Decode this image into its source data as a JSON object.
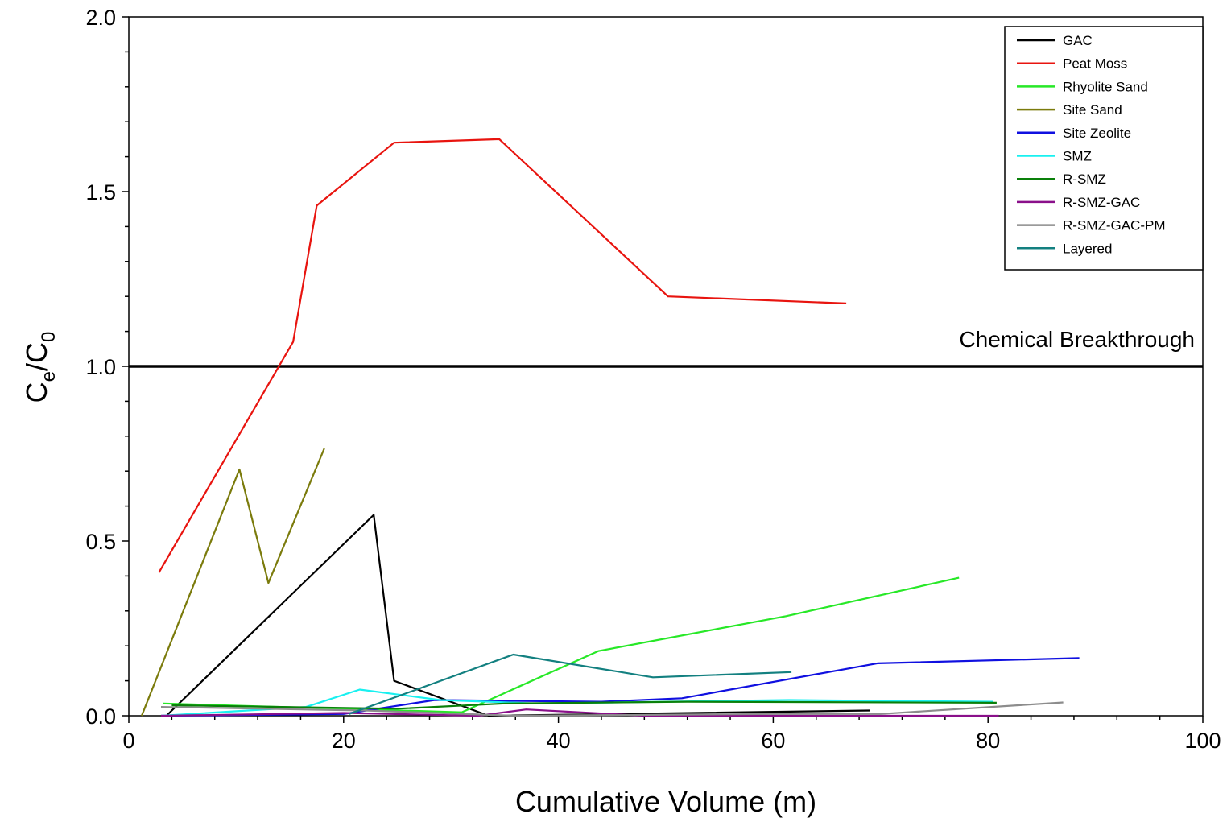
{
  "chart_data": {
    "type": "line",
    "title": "",
    "xlabel": "Cumulative Volume (m)",
    "ylabel_main": "C",
    "ylabel_sub1": "e",
    "ylabel_sep": "/C",
    "ylabel_sub2": "0",
    "xlim": [
      0,
      100
    ],
    "ylim": [
      0,
      2.0
    ],
    "x_ticks": [
      0,
      20,
      40,
      60,
      80,
      100
    ],
    "x_tick_labels": [
      "0",
      "20",
      "40",
      "60",
      "80",
      "100"
    ],
    "y_ticks": [
      0,
      0.5,
      1.0,
      1.5,
      2.0
    ],
    "y_tick_labels": [
      "0.0",
      "0.5",
      "1.0",
      "1.5",
      "2.0"
    ],
    "grid": false,
    "legend_position": "top-right",
    "reference_line": {
      "y": 1.0,
      "label": "Chemical Breakthrough",
      "color": "#000000"
    },
    "series": [
      {
        "name": "GAC",
        "color": "#000000",
        "x": [
          3.5,
          22.8,
          24.7,
          33.5,
          69
        ],
        "y": [
          0.0,
          0.575,
          0.1,
          0.0,
          0.015
        ]
      },
      {
        "name": "Peat Moss",
        "color": "#e8140f",
        "x": [
          2.8,
          15.3,
          17.5,
          24.7,
          34.5,
          50.2,
          66.8
        ],
        "y": [
          0.41,
          1.07,
          1.46,
          1.64,
          1.65,
          1.2,
          1.18
        ]
      },
      {
        "name": "Rhyolite Sand",
        "color": "#27e827",
        "x": [
          3.2,
          31.0,
          43.7,
          61.2,
          77.3
        ],
        "y": [
          0.035,
          0.01,
          0.185,
          0.285,
          0.395
        ]
      },
      {
        "name": "Site Sand",
        "color": "#7b7b0c",
        "x": [
          1.2,
          10.3,
          13.0,
          18.2
        ],
        "y": [
          0.0,
          0.705,
          0.38,
          0.765
        ]
      },
      {
        "name": "Site Zeolite",
        "color": "#1010e0",
        "x": [
          3.0,
          20.0,
          28.5,
          44.0,
          51.5,
          69.7,
          88.5
        ],
        "y": [
          0.0,
          0.005,
          0.045,
          0.04,
          0.05,
          0.15,
          0.165
        ]
      },
      {
        "name": "SMZ",
        "color": "#19f0f0",
        "x": [
          3.0,
          16.5,
          21.5,
          29.0,
          38.0,
          61.5,
          80.5
        ],
        "y": [
          0.0,
          0.025,
          0.075,
          0.045,
          0.035,
          0.045,
          0.04
        ]
      },
      {
        "name": "R-SMZ",
        "color": "#0a800a",
        "x": [
          4.0,
          25.0,
          35.0,
          52.0,
          80.8
        ],
        "y": [
          0.03,
          0.02,
          0.035,
          0.04,
          0.037
        ]
      },
      {
        "name": "R-SMZ-GAC",
        "color": "#8a108a",
        "x": [
          3.0,
          20.0,
          32.5,
          37.0,
          48.0,
          81.0
        ],
        "y": [
          0.0,
          0.008,
          0.0,
          0.018,
          0.0,
          0.0
        ]
      },
      {
        "name": "R-SMZ-GAC-PM",
        "color": "#8c8c8c",
        "x": [
          3.0,
          22.0,
          36.0,
          60.0,
          70.0,
          87.0
        ],
        "y": [
          0.025,
          0.015,
          0.0,
          0.005,
          0.005,
          0.038
        ]
      },
      {
        "name": "Layered",
        "color": "#138080",
        "x": [
          20.5,
          35.8,
          48.8,
          61.7
        ],
        "y": [
          0.005,
          0.175,
          0.11,
          0.125
        ]
      }
    ]
  }
}
